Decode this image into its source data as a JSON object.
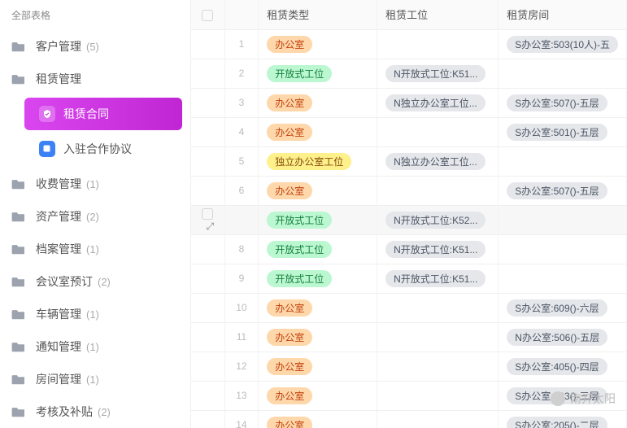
{
  "sidebar": {
    "header": "全部表格",
    "items": [
      {
        "label": "客户管理",
        "count": "(5)"
      },
      {
        "label": "租赁管理",
        "count": "",
        "expanded": true
      },
      {
        "label": "收费管理",
        "count": "(1)"
      },
      {
        "label": "资产管理",
        "count": "(2)"
      },
      {
        "label": "档案管理",
        "count": "(1)"
      },
      {
        "label": "会议室预订",
        "count": "(2)"
      },
      {
        "label": "车辆管理",
        "count": "(1)"
      },
      {
        "label": "通知管理",
        "count": "(1)"
      },
      {
        "label": "房间管理",
        "count": "(1)"
      },
      {
        "label": "考核及补贴",
        "count": "(2)"
      }
    ],
    "sub": [
      {
        "label": "租赁合同",
        "active": true
      },
      {
        "label": "入驻合作协议",
        "active": false
      }
    ]
  },
  "table": {
    "headers": {
      "type": "租赁类型",
      "position": "租赁工位",
      "room": "租赁房间"
    },
    "rows": [
      {
        "n": "1",
        "type": "办公室",
        "typeStyle": "orange",
        "pos": "",
        "room": "S办公室:503(10人)-五"
      },
      {
        "n": "2",
        "type": "开放式工位",
        "typeStyle": "green",
        "pos": "N开放式工位:K51...",
        "room": ""
      },
      {
        "n": "3",
        "type": "办公室",
        "typeStyle": "orange",
        "pos": "N独立办公室工位...",
        "room": "S办公室:507()-五层"
      },
      {
        "n": "4",
        "type": "办公室",
        "typeStyle": "orange",
        "pos": "",
        "room": "S办公室:501()-五层"
      },
      {
        "n": "5",
        "type": "独立办公室工位",
        "typeStyle": "yellow",
        "pos": "N独立办公室工位...",
        "room": ""
      },
      {
        "n": "6",
        "type": "办公室",
        "typeStyle": "orange",
        "pos": "",
        "room": "S办公室:507()-五层"
      },
      {
        "n": "",
        "type": "开放式工位",
        "typeStyle": "green",
        "pos": "N开放式工位:K52...",
        "room": "",
        "hover": true
      },
      {
        "n": "8",
        "type": "开放式工位",
        "typeStyle": "green",
        "pos": "N开放式工位:K51...",
        "room": ""
      },
      {
        "n": "9",
        "type": "开放式工位",
        "typeStyle": "green",
        "pos": "N开放式工位:K51...",
        "room": ""
      },
      {
        "n": "10",
        "type": "办公室",
        "typeStyle": "orange",
        "pos": "",
        "room": "S办公室:609()-六层"
      },
      {
        "n": "11",
        "type": "办公室",
        "typeStyle": "orange",
        "pos": "",
        "room": "N办公室:506()-五层"
      },
      {
        "n": "12",
        "type": "办公室",
        "typeStyle": "orange",
        "pos": "",
        "room": "S办公室:405()-四层"
      },
      {
        "n": "13",
        "type": "办公室",
        "typeStyle": "orange",
        "pos": "",
        "room": "S办公室:303()-三层"
      },
      {
        "n": "14",
        "type": "办公室",
        "typeStyle": "orange",
        "pos": "",
        "room": "S办公室:205()-二层"
      }
    ]
  },
  "watermark": "南开太阳"
}
